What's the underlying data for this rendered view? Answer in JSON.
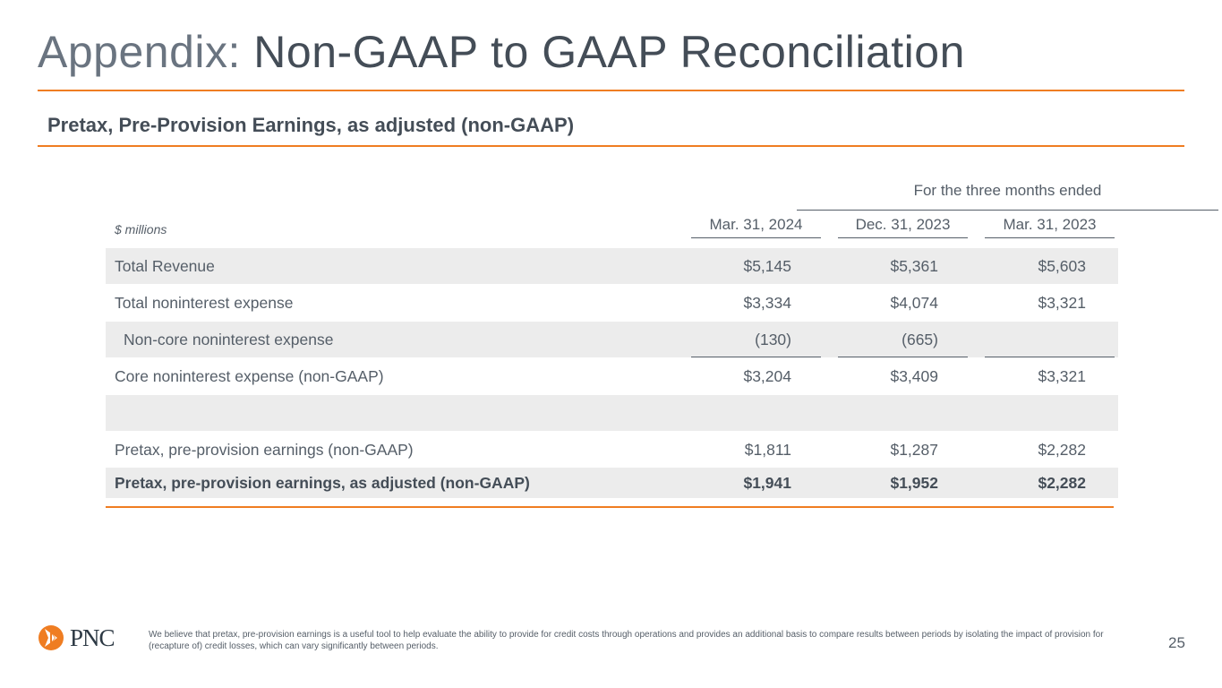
{
  "title": {
    "prefix": "Appendix:",
    "main": "Non-GAAP to GAAP Reconciliation"
  },
  "subtitle": "Pretax, Pre-Provision Earnings, as adjusted (non-GAAP)",
  "table": {
    "period_header": "For the three months ended",
    "units": "$ millions",
    "columns": [
      "Mar. 31, 2024",
      "Dec. 31, 2023",
      "Mar. 31, 2023"
    ],
    "rows": [
      {
        "label": "Total Revenue",
        "values": [
          "$5,145",
          "$5,361",
          "$5,603"
        ]
      },
      {
        "label": "Total noninterest expense",
        "values": [
          "$3,334",
          "$4,074",
          "$3,321"
        ]
      },
      {
        "label": "Non-core noninterest expense",
        "values": [
          "(130)",
          "(665)",
          ""
        ]
      },
      {
        "label": "Core noninterest expense (non-GAAP)",
        "values": [
          "$3,204",
          "$3,409",
          "$3,321"
        ]
      },
      {
        "label": "",
        "values": [
          "",
          "",
          ""
        ]
      },
      {
        "label": "Pretax, pre-provision earnings (non-GAAP)",
        "values": [
          "$1,811",
          "$1,287",
          "$2,282"
        ]
      },
      {
        "label": "Pretax, pre-provision earnings, as adjusted (non-GAAP)",
        "values": [
          "$1,941",
          "$1,952",
          "$2,282"
        ]
      }
    ]
  },
  "footer": {
    "logo_text": "PNC",
    "footnote": "We believe that pretax, pre-provision earnings is a useful tool to help evaluate the ability to provide for credit costs through operations and provides an additional basis to compare results between periods by isolating the impact of provision for (recapture of) credit losses, which can vary significantly between periods.",
    "page_number": "25"
  },
  "colors": {
    "accent": "#ef7d22",
    "text": "#4a5460",
    "row_shade": "#ececec"
  }
}
